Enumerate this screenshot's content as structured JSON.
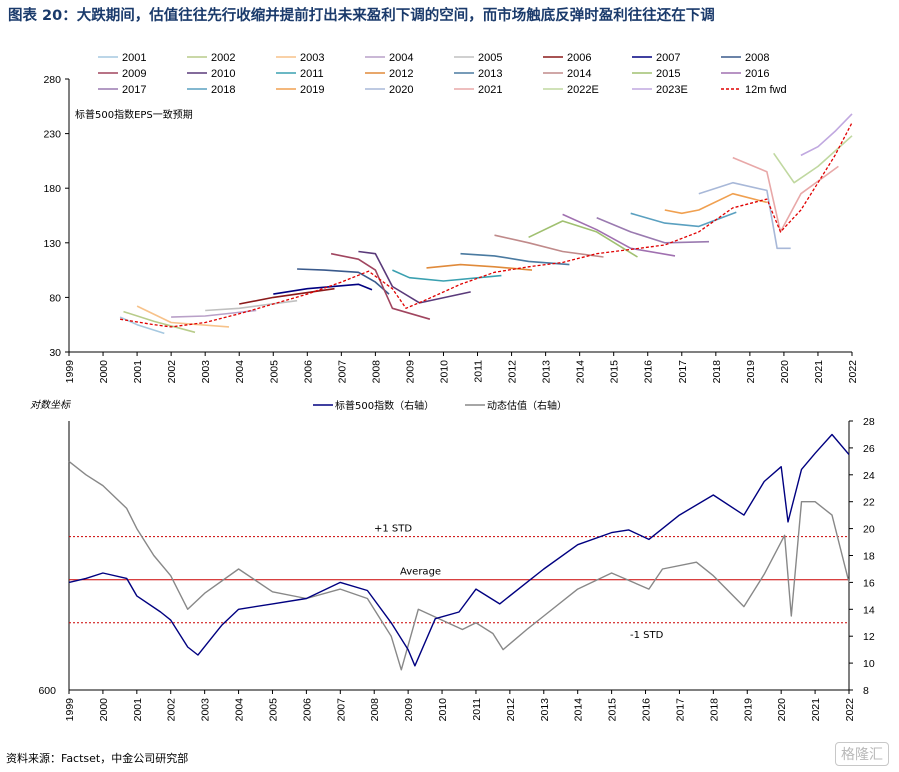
{
  "title": "图表 20：大跌期间，估值往往先行收缩并提前打出未来盈利下调的空间，而市场触底反弹时盈利往往还在下调",
  "source": "资料来源：Factset，中金公司研究部",
  "watermark": "格隆汇",
  "chart_data": [
    {
      "type": "line",
      "note": "标普500指数EPS一致预期",
      "ylim": [
        30,
        280
      ],
      "y_ticks": [
        "280",
        "230",
        "180",
        "130",
        "80",
        "30"
      ],
      "x_ticks": [
        "1999",
        "2000",
        "2001",
        "2002",
        "2003",
        "2004",
        "2005",
        "2006",
        "2007",
        "2008",
        "2009",
        "2010",
        "2011",
        "2012",
        "2013",
        "2014",
        "2015",
        "2016",
        "2017",
        "2018",
        "2019",
        "2020",
        "2021",
        "2022"
      ],
      "series": [
        {
          "name": "2001",
          "color": "#a6c8e0",
          "x": [
            2000.5,
            2001.0,
            2001.8
          ],
          "y": [
            62,
            55,
            47
          ]
        },
        {
          "name": "2002",
          "color": "#b8cc8a",
          "x": [
            2000.6,
            2001.5,
            2002.7
          ],
          "y": [
            67,
            58,
            48
          ]
        },
        {
          "name": "2003",
          "color": "#f7c28a",
          "x": [
            2001.0,
            2002.0,
            2003.7
          ],
          "y": [
            72,
            57,
            53
          ]
        },
        {
          "name": "2004",
          "color": "#b9a0c8",
          "x": [
            2002.0,
            2003.0,
            2004.5
          ],
          "y": [
            62,
            63,
            68
          ]
        },
        {
          "name": "2005",
          "color": "#c0c0c0",
          "x": [
            2003.0,
            2004.0,
            2005.7
          ],
          "y": [
            68,
            70,
            77
          ]
        },
        {
          "name": "2006",
          "color": "#8b1a1a",
          "x": [
            2004.0,
            2005.0,
            2006.8
          ],
          "y": [
            74,
            80,
            88
          ]
        },
        {
          "name": "2007",
          "color": "#000080",
          "x": [
            2005.0,
            2006.0,
            2007.5,
            2007.9
          ],
          "y": [
            83,
            88,
            92,
            87
          ]
        },
        {
          "name": "2008",
          "color": "#3a5a8c",
          "x": [
            2005.7,
            2006.5,
            2007.5,
            2008.0,
            2008.4
          ],
          "y": [
            106,
            105,
            103,
            94,
            83
          ]
        },
        {
          "name": "2009",
          "color": "#a0455f",
          "x": [
            2006.7,
            2007.5,
            2008.0,
            2008.5,
            2009.6
          ],
          "y": [
            120,
            115,
            105,
            70,
            60
          ]
        },
        {
          "name": "2010",
          "color": "#5a3a7a",
          "x": [
            2007.5,
            2008.0,
            2008.5,
            2009.3,
            2010.8
          ],
          "y": [
            122,
            120,
            90,
            75,
            85
          ]
        },
        {
          "name": "2011",
          "color": "#3aa0b0",
          "x": [
            2008.5,
            2009.0,
            2010.0,
            2011.7
          ],
          "y": [
            105,
            98,
            95,
            100
          ]
        },
        {
          "name": "2012",
          "color": "#e08a3a",
          "x": [
            2009.5,
            2010.5,
            2011.5,
            2012.6
          ],
          "y": [
            107,
            110,
            108,
            105
          ]
        },
        {
          "name": "2013",
          "color": "#4a7aa0",
          "x": [
            2010.5,
            2011.5,
            2012.5,
            2013.7
          ],
          "y": [
            120,
            118,
            113,
            110
          ]
        },
        {
          "name": "2014",
          "color": "#c08a8a",
          "x": [
            2011.5,
            2012.5,
            2013.5,
            2014.7
          ],
          "y": [
            137,
            130,
            122,
            117
          ]
        },
        {
          "name": "2015",
          "color": "#a0c070",
          "x": [
            2012.5,
            2013.5,
            2014.5,
            2015.7
          ],
          "y": [
            135,
            150,
            140,
            117
          ]
        },
        {
          "name": "2016",
          "color": "#a070b0",
          "x": [
            2013.5,
            2014.5,
            2015.5,
            2016.8
          ],
          "y": [
            156,
            142,
            125,
            118
          ]
        },
        {
          "name": "2017",
          "color": "#9a7ab0",
          "x": [
            2014.5,
            2015.5,
            2016.5,
            2017.8
          ],
          "y": [
            153,
            140,
            130,
            131
          ]
        },
        {
          "name": "2018",
          "color": "#5aa0c0",
          "x": [
            2015.5,
            2016.5,
            2017.5,
            2018.6
          ],
          "y": [
            157,
            148,
            145,
            158
          ]
        },
        {
          "name": "2019",
          "color": "#f0a050",
          "x": [
            2016.5,
            2017.0,
            2017.5,
            2018.5,
            2019.5
          ],
          "y": [
            160,
            157,
            160,
            175,
            167
          ]
        },
        {
          "name": "2020",
          "color": "#a8b8d8",
          "x": [
            2017.5,
            2018.5,
            2019.5,
            2019.8,
            2020.2
          ],
          "y": [
            175,
            185,
            178,
            125,
            125
          ]
        },
        {
          "name": "2021",
          "color": "#e8a8a8",
          "x": [
            2018.5,
            2019.5,
            2019.9,
            2020.5,
            2021.6
          ],
          "y": [
            208,
            195,
            140,
            175,
            200
          ]
        },
        {
          "name": "2022E",
          "color": "#c0d8a0",
          "x": [
            2019.7,
            2020.3,
            2021.0,
            2022.0
          ],
          "y": [
            212,
            185,
            200,
            228
          ]
        },
        {
          "name": "2023E",
          "color": "#c0a8e0",
          "x": [
            2020.5,
            2021.0,
            2021.5,
            2022.0
          ],
          "y": [
            210,
            218,
            232,
            248
          ]
        },
        {
          "name": "12m fwd",
          "color": "#e00000",
          "dashed": true,
          "x": [
            2000.5,
            2001.5,
            2002.0,
            2003.0,
            2004.0,
            2005.0,
            2006.0,
            2007.0,
            2007.8,
            2008.5,
            2008.9,
            2009.5,
            2010.5,
            2011.5,
            2012.5,
            2013.5,
            2014.5,
            2015.5,
            2016.5,
            2017.5,
            2018.5,
            2019.5,
            2019.9,
            2020.5,
            2021.0,
            2021.5,
            2022.0
          ],
          "y": [
            60,
            55,
            53,
            57,
            65,
            74,
            83,
            94,
            104,
            88,
            70,
            78,
            92,
            103,
            108,
            112,
            120,
            124,
            128,
            140,
            162,
            170,
            140,
            160,
            185,
            210,
            240
          ]
        }
      ]
    },
    {
      "type": "line",
      "left_axis_title": "对数坐标",
      "left_tick": "600",
      "right_ylim": [
        8,
        28
      ],
      "right_ticks": [
        "28",
        "26",
        "24",
        "22",
        "20",
        "18",
        "16",
        "14",
        "12",
        "10",
        "8"
      ],
      "x_ticks": [
        "1999",
        "2000",
        "2001",
        "2002",
        "2003",
        "2004",
        "2005",
        "2006",
        "2007",
        "2008",
        "2009",
        "2010",
        "2011",
        "2012",
        "2013",
        "2014",
        "2015",
        "2016",
        "2017",
        "2018",
        "2019",
        "2020",
        "2021",
        "2022"
      ],
      "reference_lines": [
        {
          "label": "+1 STD",
          "value": 19.4
        },
        {
          "label": "Average",
          "value": 16.2
        },
        {
          "label": "-1 STD",
          "value": 13.0
        }
      ],
      "series": [
        {
          "name": "标普500指数（右轴）",
          "color": "#000080",
          "x": [
            1999.0,
            1999.5,
            2000.0,
            2000.7,
            2001.0,
            2001.7,
            2002.0,
            2002.5,
            2002.8,
            2003.5,
            2004.0,
            2005.0,
            2006.0,
            2007.0,
            2007.8,
            2008.5,
            2009.0,
            2009.2,
            2009.8,
            2010.5,
            2011.0,
            2011.7,
            2012.5,
            2013.0,
            2014.0,
            2015.0,
            2015.5,
            2016.1,
            2016.5,
            2017.0,
            2018.0,
            2018.9,
            2019.5,
            2020.0,
            2020.2,
            2020.6,
            2021.0,
            2021.5,
            2022.0
          ],
          "y": [
            16.0,
            16.3,
            16.7,
            16.3,
            15.0,
            13.8,
            13.2,
            11.2,
            10.6,
            12.8,
            14.0,
            14.4,
            14.8,
            16.0,
            15.4,
            13.0,
            11.0,
            9.8,
            13.3,
            13.8,
            15.5,
            14.4,
            16.0,
            17.0,
            18.8,
            19.7,
            19.9,
            19.2,
            20.0,
            21.0,
            22.5,
            21.0,
            23.5,
            24.6,
            20.5,
            24.4,
            25.6,
            27.0,
            25.5
          ]
        },
        {
          "name": "动态估值（右轴）",
          "color": "#888888",
          "x": [
            1999.0,
            1999.5,
            2000.0,
            2000.7,
            2001.0,
            2001.5,
            2002.0,
            2002.5,
            2003.0,
            2004.0,
            2005.0,
            2006.0,
            2007.0,
            2007.8,
            2008.5,
            2008.8,
            2009.3,
            2010.0,
            2010.6,
            2011.0,
            2011.5,
            2011.8,
            2012.5,
            2013.0,
            2014.0,
            2015.0,
            2016.1,
            2016.5,
            2017.5,
            2018.0,
            2018.9,
            2019.5,
            2020.1,
            2020.3,
            2020.6,
            2021.0,
            2021.5,
            2021.9,
            2022.0
          ],
          "y": [
            25.0,
            24.0,
            23.2,
            21.5,
            20.0,
            18.0,
            16.5,
            14.0,
            15.2,
            17.0,
            15.3,
            14.8,
            15.5,
            14.8,
            12.0,
            9.5,
            14.0,
            13.2,
            12.5,
            13.0,
            12.2,
            11.0,
            12.5,
            13.5,
            15.5,
            16.7,
            15.5,
            17.0,
            17.5,
            16.5,
            14.2,
            16.6,
            19.5,
            13.5,
            22.0,
            22.0,
            21.0,
            17.0,
            16.0
          ]
        }
      ]
    }
  ]
}
